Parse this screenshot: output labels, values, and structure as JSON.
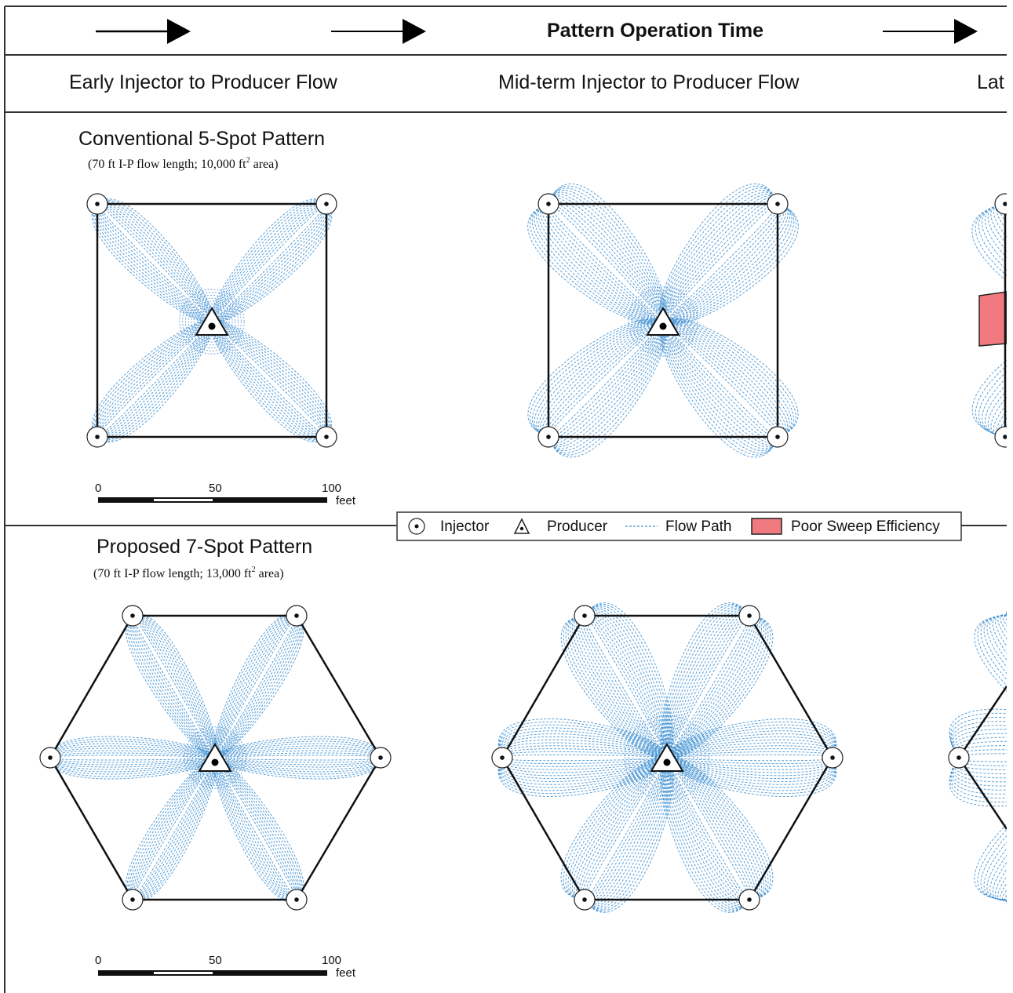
{
  "header": {
    "title": "Pattern Operation Time"
  },
  "stages": {
    "early": "Early Injector to Producer Flow",
    "mid": "Mid-term Injector to Producer Flow",
    "late_partial": "Lat"
  },
  "patterns": {
    "five_spot": {
      "title": "Conventional 5-Spot Pattern",
      "subtitle_prefix": "(70 ft I-P flow length; 10,000 ft",
      "subtitle_sup": "2",
      "subtitle_suffix": " area)"
    },
    "seven_spot": {
      "title": "Proposed 7-Spot Pattern",
      "subtitle_prefix": "(70 ft I-P flow length; 13,000 ft",
      "subtitle_sup": "2",
      "subtitle_suffix": " area)"
    }
  },
  "scale_bar": {
    "ticks": [
      "0",
      "50",
      "100"
    ],
    "unit": "feet"
  },
  "legend": {
    "injector": "Injector",
    "producer": "Producer",
    "flow_path": "Flow Path",
    "poor_sweep": "Poor Sweep Efficiency"
  },
  "colors": {
    "flow_path": "#3d8fd1",
    "flow_path_dense": "#1f6fc2",
    "poor_sweep": "#f07a80",
    "outline": "#111111",
    "frame": "#333333"
  },
  "icons": {
    "injector": "circle-dot-icon",
    "producer": "triangle-dot-icon",
    "time_arrow": "arrow-right-icon"
  }
}
